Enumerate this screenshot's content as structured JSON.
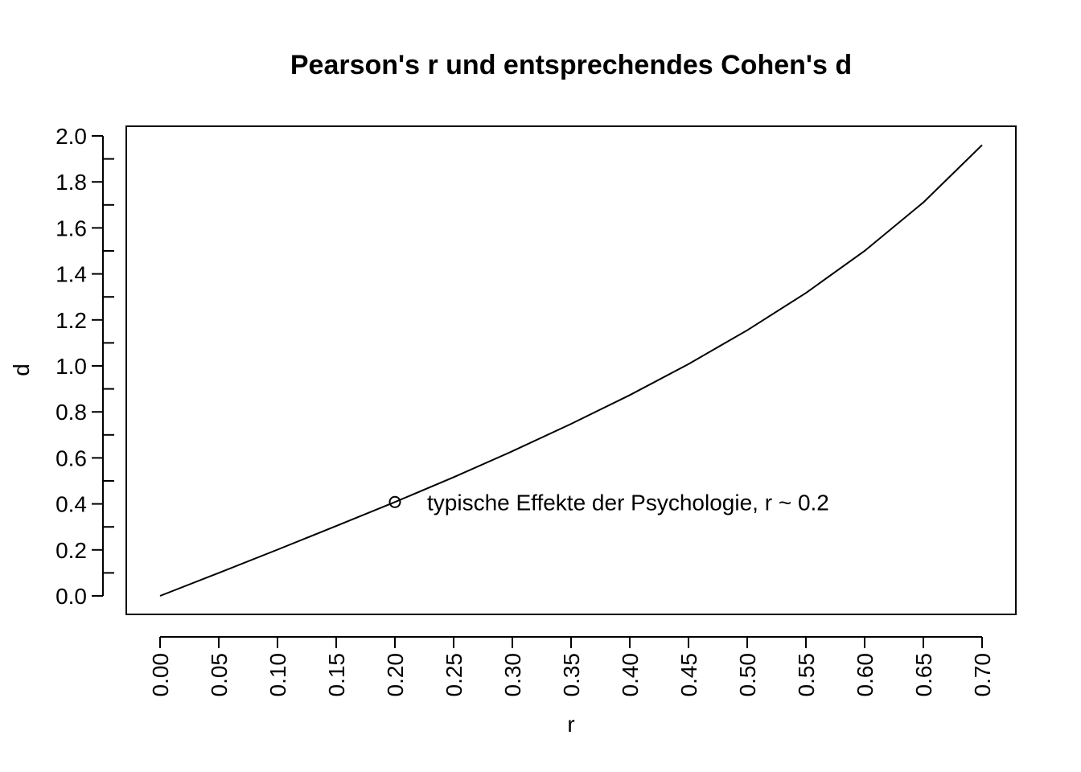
{
  "chart_data": {
    "type": "line",
    "title": "Pearson's r und entsprechendes Cohen's d",
    "xlabel": "r",
    "ylabel": "d",
    "xlim": [
      0.0,
      0.7
    ],
    "ylim": [
      0.0,
      2.0
    ],
    "x_ticks": [
      "0.00",
      "0.05",
      "0.10",
      "0.15",
      "0.20",
      "0.25",
      "0.30",
      "0.35",
      "0.40",
      "0.45",
      "0.50",
      "0.55",
      "0.60",
      "0.65",
      "0.70"
    ],
    "y_ticks": [
      "0.0",
      "0.2",
      "0.4",
      "0.6",
      "0.8",
      "1.0",
      "1.2",
      "1.4",
      "1.6",
      "1.8",
      "2.0"
    ],
    "y_minor_step": 0.1,
    "grid": false,
    "series": [
      {
        "x": [
          0.0,
          0.05,
          0.1,
          0.15,
          0.2,
          0.25,
          0.3,
          0.35,
          0.4,
          0.45,
          0.5,
          0.55,
          0.6,
          0.65,
          0.7
        ],
        "y": [
          0.0,
          0.1,
          0.201,
          0.304,
          0.408,
          0.516,
          0.629,
          0.748,
          0.873,
          1.008,
          1.155,
          1.317,
          1.5,
          1.711,
          1.96
        ]
      }
    ],
    "points": [
      {
        "x": 0.2,
        "y": 0.408,
        "marker": "open-circle"
      }
    ],
    "annotations": [
      {
        "text": "typische Effekte der Psychologie, r ~ 0.2",
        "x": 0.2,
        "y": 0.408
      }
    ]
  }
}
